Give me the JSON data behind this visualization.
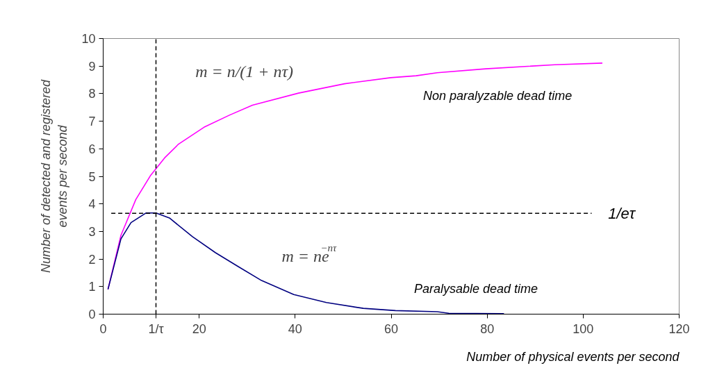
{
  "chart_data": {
    "type": "line",
    "xlabel": "Number of physical events per second",
    "ylabel": "Number of detected and registered\nevents per second",
    "xlim": [
      0,
      120
    ],
    "ylim": [
      0,
      10
    ],
    "xticks": [
      0,
      20,
      40,
      60,
      80,
      100,
      120
    ],
    "yticks": [
      0,
      1,
      2,
      3,
      4,
      5,
      6,
      7,
      8,
      9,
      10
    ],
    "grid": false,
    "legend": false,
    "marker": "none",
    "line_style": "solid",
    "series": [
      {
        "name": "Non paralyzable dead time",
        "color": "#ff00ff",
        "x": [
          1,
          3.7,
          6.8,
          9.9,
          12.8,
          15.7,
          21,
          26.3,
          31.1,
          40.7,
          50.3,
          59.9,
          65.2,
          69.6,
          79.7,
          94.1,
          104
        ],
        "values": [
          0.9,
          2.86,
          4.16,
          5.04,
          5.67,
          6.17,
          6.78,
          7.22,
          7.58,
          8.02,
          8.36,
          8.58,
          8.65,
          8.76,
          8.9,
          9.05,
          9.11
        ]
      },
      {
        "name": "Paralysable dead time",
        "color": "#000080",
        "x": [
          1,
          3.7,
          5.8,
          8.9,
          11,
          13.8,
          18.6,
          23.4,
          28.2,
          33,
          39.7,
          46.5,
          54.2,
          60.9,
          69.6,
          72,
          83.5
        ],
        "values": [
          0.9,
          2.73,
          3.32,
          3.67,
          3.67,
          3.49,
          2.81,
          2.23,
          1.72,
          1.22,
          0.71,
          0.42,
          0.21,
          0.13,
          0.09,
          0.03,
          0.02
        ]
      }
    ],
    "ref_lines": [
      {
        "axis": "x",
        "value": 11,
        "label": "1/τ",
        "color": "#000000",
        "line_style": "dashed"
      },
      {
        "axis": "y",
        "value": 3.66,
        "label": "1/eτ",
        "color": "#000000",
        "line_style": "dashed"
      }
    ],
    "annotations": [
      "m = n/(1 + nτ)",
      "m = ne$^{−nτ}$"
    ]
  }
}
